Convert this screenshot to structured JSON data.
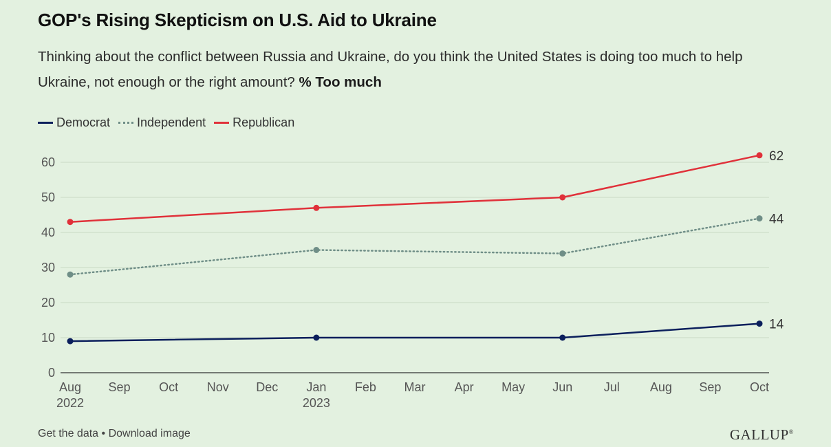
{
  "header": {
    "title": "GOP's Rising Skepticism on U.S. Aid to Ukraine",
    "subtitle": "Thinking about the conflict between Russia and Ukraine, do you think the United States is doing too much to help Ukraine, not enough or the right amount?",
    "subtitle_emphasis": "% Too much"
  },
  "chart_data": {
    "type": "line",
    "title": "GOP's Rising Skepticism on U.S. Aid to Ukraine",
    "xlabel": "",
    "ylabel": "% Too much",
    "ylim": [
      0,
      60
    ],
    "yticks": [
      0,
      10,
      20,
      30,
      40,
      50,
      60
    ],
    "x_ticks": [
      {
        "label": "Aug",
        "sub": "2022",
        "index": 0
      },
      {
        "label": "Sep",
        "sub": "",
        "index": 1
      },
      {
        "label": "Oct",
        "sub": "",
        "index": 2
      },
      {
        "label": "Nov",
        "sub": "",
        "index": 3
      },
      {
        "label": "Dec",
        "sub": "",
        "index": 4
      },
      {
        "label": "Jan",
        "sub": "2023",
        "index": 5
      },
      {
        "label": "Feb",
        "sub": "",
        "index": 6
      },
      {
        "label": "Mar",
        "sub": "",
        "index": 7
      },
      {
        "label": "Apr",
        "sub": "",
        "index": 8
      },
      {
        "label": "May",
        "sub": "",
        "index": 9
      },
      {
        "label": "Jun",
        "sub": "",
        "index": 10
      },
      {
        "label": "Jul",
        "sub": "",
        "index": 11
      },
      {
        "label": "Aug",
        "sub": "",
        "index": 12
      },
      {
        "label": "Sep",
        "sub": "",
        "index": 13
      },
      {
        "label": "Oct",
        "sub": "",
        "index": 14
      }
    ],
    "x": [
      0,
      5,
      10,
      14
    ],
    "series": [
      {
        "name": "Democrat",
        "key": "democrat",
        "color": "#0b1f5c",
        "style": "solid",
        "values": [
          9,
          10,
          10,
          14
        ],
        "end_label": "14"
      },
      {
        "name": "Independent",
        "key": "independent",
        "color": "#6f8e87",
        "style": "dotted",
        "values": [
          28,
          35,
          34,
          44
        ],
        "end_label": "44"
      },
      {
        "name": "Republican",
        "key": "republican",
        "color": "#e0313a",
        "style": "solid",
        "values": [
          43,
          47,
          50,
          62
        ],
        "end_label": "62"
      }
    ],
    "grid": true,
    "legend": "top-left"
  },
  "footer": {
    "get_data": "Get the data",
    "separator": "•",
    "download": "Download image",
    "brand": "GALLUP",
    "brand_mark": "®"
  }
}
